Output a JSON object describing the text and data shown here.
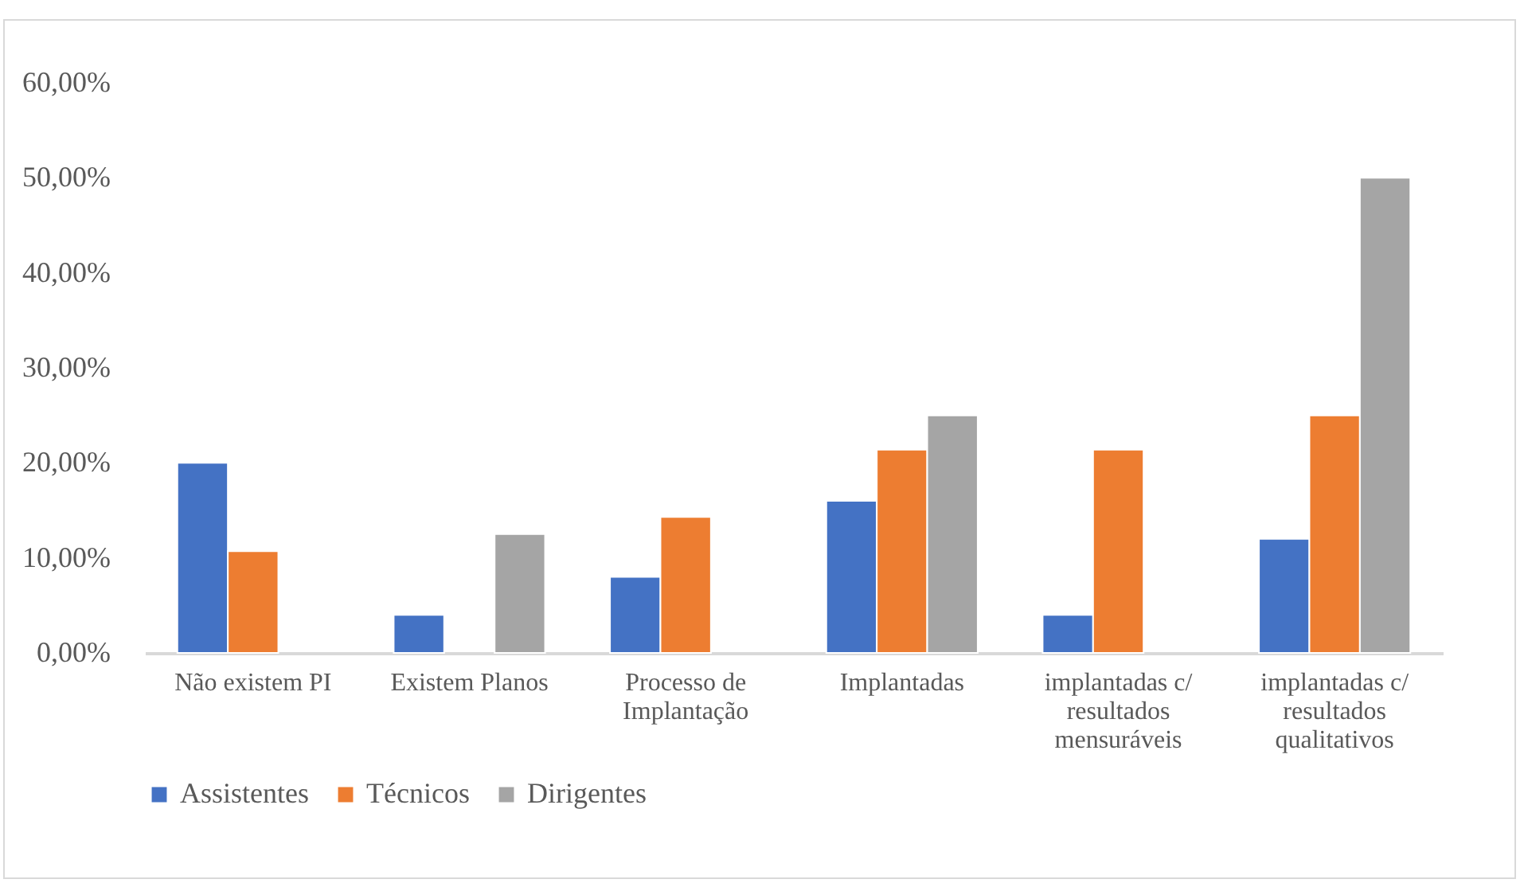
{
  "chart_data": {
    "type": "bar",
    "categories": [
      "Não existem PI",
      "Existem Planos",
      "Processo de Implantação",
      "Implantadas",
      "implantadas c/ resultados mensuráveis",
      "implantadas c/ resultados qualitativos"
    ],
    "series": [
      {
        "name": "Assistentes",
        "color": "#4472c4",
        "values": [
          20,
          4,
          8,
          16,
          4,
          12
        ]
      },
      {
        "name": "Técnicos",
        "color": "#ed7d31",
        "values": [
          10.7,
          null,
          14.3,
          21.4,
          21.4,
          25
        ]
      },
      {
        "name": "Dirigentes",
        "color": "#a5a5a5",
        "values": [
          null,
          12.5,
          null,
          25,
          null,
          50
        ]
      }
    ],
    "ylim": [
      0,
      60
    ],
    "yticks": [
      {
        "value": 0,
        "label": "0,00%"
      },
      {
        "value": 10,
        "label": "10,00%"
      },
      {
        "value": 20,
        "label": "20,00%"
      },
      {
        "value": 30,
        "label": "30,00%"
      },
      {
        "value": 40,
        "label": "40,00%"
      },
      {
        "value": 50,
        "label": "50,00%"
      },
      {
        "value": 60,
        "label": "60,00%"
      }
    ],
    "grid": false,
    "legend": "bottom"
  }
}
